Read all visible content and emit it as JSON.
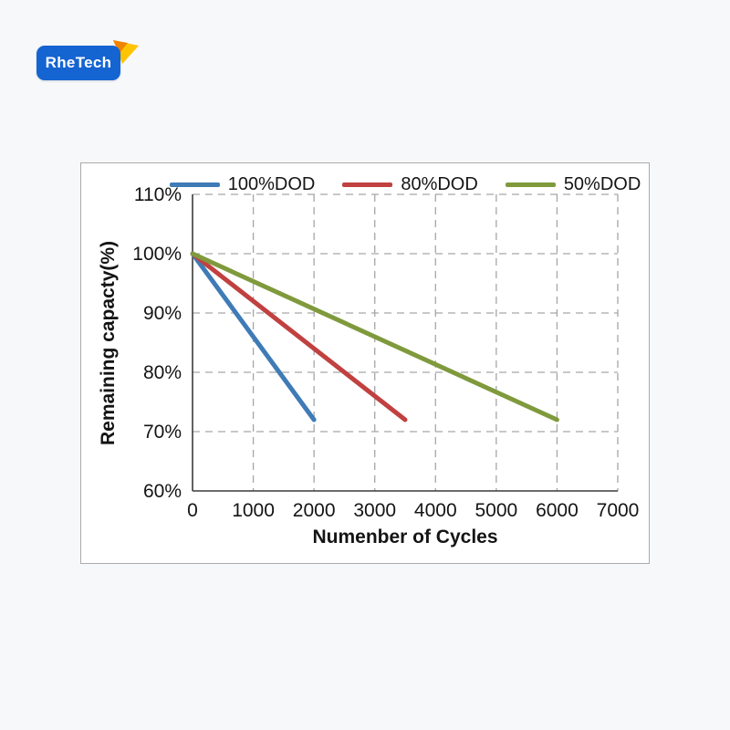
{
  "logo": {
    "text": "RheTech",
    "box_color": "#1464d2",
    "flag_colors": [
      "#ffc400",
      "#f08300"
    ]
  },
  "chart_data": {
    "type": "line",
    "title": "",
    "xlabel": "Numenber of Cycles",
    "ylabel": "Remaining capacty(%)",
    "xlim": [
      0,
      7000
    ],
    "ylim": [
      60,
      110
    ],
    "grid": "dashed",
    "legend_position": "top",
    "xticks": [
      {
        "value": 0,
        "label": "0"
      },
      {
        "value": 1000,
        "label": "1000"
      },
      {
        "value": 2000,
        "label": "2000"
      },
      {
        "value": 3000,
        "label": "3000"
      },
      {
        "value": 4000,
        "label": "4000"
      },
      {
        "value": 5000,
        "label": "5000"
      },
      {
        "value": 6000,
        "label": "6000"
      },
      {
        "value": 7000,
        "label": "7000"
      }
    ],
    "yticks": [
      {
        "value": 60,
        "label": "60%"
      },
      {
        "value": 70,
        "label": "70%"
      },
      {
        "value": 80,
        "label": "80%"
      },
      {
        "value": 90,
        "label": "90%"
      },
      {
        "value": 100,
        "label": "100%"
      },
      {
        "value": 110,
        "label": "110%"
      }
    ],
    "series": [
      {
        "name": "100%DOD",
        "color": "#3f7bb6",
        "points": [
          [
            0,
            100
          ],
          [
            2000,
            72
          ]
        ]
      },
      {
        "name": "80%DOD",
        "color": "#c04140",
        "points": [
          [
            0,
            100
          ],
          [
            3500,
            72
          ]
        ]
      },
      {
        "name": "50%DOD",
        "color": "#7f9a3c",
        "points": [
          [
            0,
            100
          ],
          [
            6000,
            72
          ]
        ]
      }
    ],
    "colors": {
      "grid": "#a6a6a6",
      "axis": "#3c3c3c",
      "tick_text": "#141414"
    }
  }
}
